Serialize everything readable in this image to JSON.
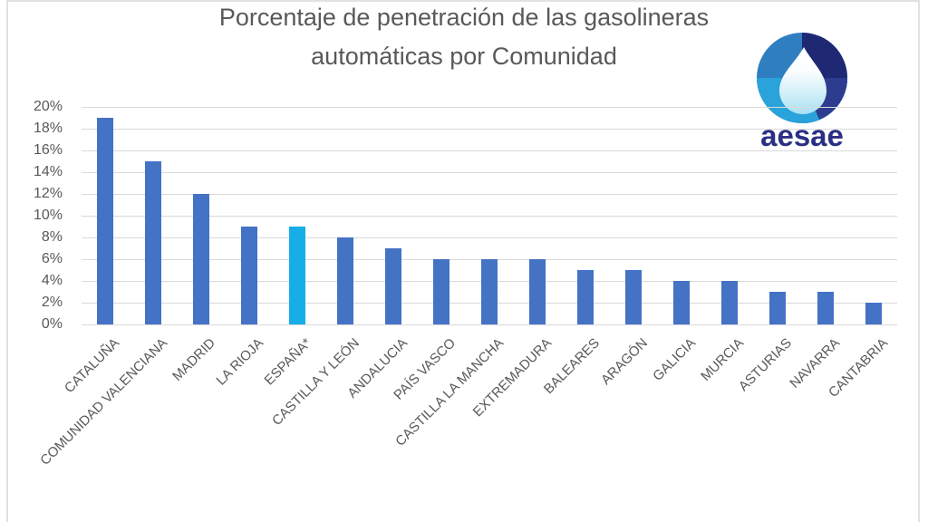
{
  "title": {
    "line1": "Porcentaje de penetración de las gasolineras",
    "line2": "automáticas por Comunidad"
  },
  "logo": {
    "text": "aesae",
    "colors": {
      "wordmark_navy": "#2B2F84",
      "sphere_medium_blue": "#2F7FC0",
      "sphere_dark_navy": "#1F2873",
      "sphere_royal_blue": "#2E3C90",
      "sphere_cyan": "#2AA2DA",
      "drop_light": "#FDFEFF",
      "drop_cyan": "#A9E1F2"
    }
  },
  "chart_data": {
    "type": "bar",
    "title": "Porcentaje de penetración de las gasolineras automáticas por Comunidad",
    "categories": [
      "CATALUÑA",
      "COMUNIDAD VALENCIANA",
      "MADRID",
      "LA RIOJA",
      "ESPAÑA*",
      "CASTILLA Y LEÓN",
      "ANDALUCIA",
      "PAÍS VASCO",
      "CASTILLA LA MANCHA",
      "EXTREMADURA",
      "BALEARES",
      "ARAGÓN",
      "GALICIA",
      "MURCIA",
      "ASTURIAS",
      "NAVARRA",
      "CANTABRIA"
    ],
    "values": [
      19,
      15,
      12,
      9,
      9,
      8,
      7,
      6,
      6,
      6,
      5,
      5,
      4,
      4,
      3,
      3,
      2
    ],
    "unit": "%",
    "xlabel": "",
    "ylabel": "",
    "ylim": [
      0,
      20
    ],
    "ytick_step": 2,
    "ytick_labels": [
      "20%",
      "18%",
      "16%",
      "14%",
      "12%",
      "10%",
      "8%",
      "6%",
      "4%",
      "2%",
      "0%"
    ],
    "grid": true,
    "legend": false,
    "bar_color": "#4472C4",
    "highlight": {
      "category": "ESPAÑA*",
      "index": 4,
      "color": "#17AEE8"
    },
    "gridline_color": "#D9D9D9",
    "axis_label_color": "#595959",
    "title_color": "#595959"
  }
}
